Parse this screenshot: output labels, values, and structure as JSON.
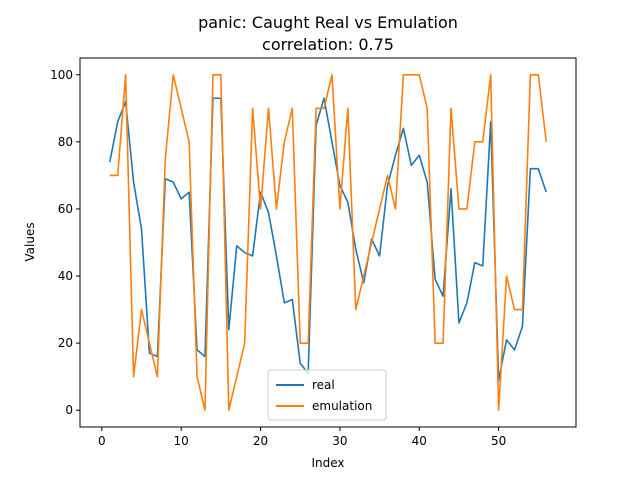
{
  "chart_data": {
    "type": "line",
    "title": "panic: Caught Real vs Emulation",
    "subtitle": "correlation: 0.75",
    "xlabel": "Index",
    "ylabel": "Values",
    "xlim": [
      -2.75,
      59.75
    ],
    "ylim": [
      -5,
      105
    ],
    "xticks": [
      0,
      10,
      20,
      30,
      40,
      50
    ],
    "yticks": [
      0,
      20,
      40,
      60,
      80,
      100
    ],
    "grid": false,
    "legend_position": "bottom-center",
    "x": [
      1,
      2,
      3,
      4,
      5,
      6,
      7,
      8,
      9,
      10,
      11,
      12,
      13,
      14,
      15,
      16,
      17,
      18,
      19,
      20,
      21,
      22,
      23,
      24,
      25,
      26,
      27,
      28,
      29,
      30,
      31,
      32,
      33,
      34,
      35,
      36,
      37,
      38,
      39,
      40,
      41,
      42,
      43,
      44,
      45,
      46,
      47,
      48,
      49,
      50,
      51,
      52,
      53,
      54,
      55,
      56
    ],
    "series": [
      {
        "name": "real",
        "color": "#1f77b4",
        "values": [
          74,
          86,
          92,
          68,
          54,
          17,
          16,
          69,
          68,
          63,
          65,
          18,
          16,
          93,
          93,
          24,
          49,
          47,
          46,
          65,
          59,
          46,
          32,
          33,
          14,
          11,
          85,
          93,
          80,
          67,
          62,
          48,
          38,
          51,
          46,
          67,
          76,
          84,
          73,
          76,
          68,
          39,
          34,
          66,
          26,
          32,
          44,
          43,
          86,
          9,
          21,
          18,
          25,
          72,
          72,
          65
        ]
      },
      {
        "name": "emulation",
        "color": "#ff7f0e",
        "values": [
          70,
          70,
          100,
          10,
          30,
          20,
          10,
          75,
          100,
          90,
          80,
          10,
          0,
          100,
          100,
          0,
          10,
          20,
          90,
          60,
          90,
          60,
          80,
          90,
          20,
          20,
          90,
          90,
          100,
          60,
          90,
          30,
          40,
          50,
          60,
          70,
          60,
          100,
          100,
          100,
          90,
          20,
          20,
          90,
          60,
          60,
          80,
          80,
          100,
          0,
          40,
          30,
          30,
          100,
          100,
          80
        ]
      }
    ]
  }
}
